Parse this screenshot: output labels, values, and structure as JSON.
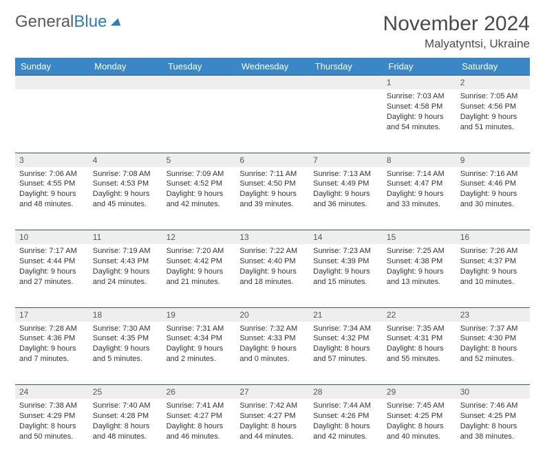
{
  "logo": {
    "text1": "General",
    "text2": "Blue"
  },
  "title": "November 2024",
  "location": "Malyatyntsi, Ukraine",
  "colors": {
    "header_bg": "#3a87c8",
    "header_text": "#ffffff",
    "daynum_bg": "#eeeeee",
    "border": "#2f5b80",
    "text": "#333333",
    "logo_gray": "#5a5a5a",
    "logo_blue": "#2b7bbf"
  },
  "weekdays": [
    "Sunday",
    "Monday",
    "Tuesday",
    "Wednesday",
    "Thursday",
    "Friday",
    "Saturday"
  ],
  "weeks": [
    [
      {},
      {},
      {},
      {},
      {},
      {
        "n": "1",
        "sr": "Sunrise: 7:03 AM",
        "ss": "Sunset: 4:58 PM",
        "d1": "Daylight: 9 hours",
        "d2": "and 54 minutes."
      },
      {
        "n": "2",
        "sr": "Sunrise: 7:05 AM",
        "ss": "Sunset: 4:56 PM",
        "d1": "Daylight: 9 hours",
        "d2": "and 51 minutes."
      }
    ],
    [
      {
        "n": "3",
        "sr": "Sunrise: 7:06 AM",
        "ss": "Sunset: 4:55 PM",
        "d1": "Daylight: 9 hours",
        "d2": "and 48 minutes."
      },
      {
        "n": "4",
        "sr": "Sunrise: 7:08 AM",
        "ss": "Sunset: 4:53 PM",
        "d1": "Daylight: 9 hours",
        "d2": "and 45 minutes."
      },
      {
        "n": "5",
        "sr": "Sunrise: 7:09 AM",
        "ss": "Sunset: 4:52 PM",
        "d1": "Daylight: 9 hours",
        "d2": "and 42 minutes."
      },
      {
        "n": "6",
        "sr": "Sunrise: 7:11 AM",
        "ss": "Sunset: 4:50 PM",
        "d1": "Daylight: 9 hours",
        "d2": "and 39 minutes."
      },
      {
        "n": "7",
        "sr": "Sunrise: 7:13 AM",
        "ss": "Sunset: 4:49 PM",
        "d1": "Daylight: 9 hours",
        "d2": "and 36 minutes."
      },
      {
        "n": "8",
        "sr": "Sunrise: 7:14 AM",
        "ss": "Sunset: 4:47 PM",
        "d1": "Daylight: 9 hours",
        "d2": "and 33 minutes."
      },
      {
        "n": "9",
        "sr": "Sunrise: 7:16 AM",
        "ss": "Sunset: 4:46 PM",
        "d1": "Daylight: 9 hours",
        "d2": "and 30 minutes."
      }
    ],
    [
      {
        "n": "10",
        "sr": "Sunrise: 7:17 AM",
        "ss": "Sunset: 4:44 PM",
        "d1": "Daylight: 9 hours",
        "d2": "and 27 minutes."
      },
      {
        "n": "11",
        "sr": "Sunrise: 7:19 AM",
        "ss": "Sunset: 4:43 PM",
        "d1": "Daylight: 9 hours",
        "d2": "and 24 minutes."
      },
      {
        "n": "12",
        "sr": "Sunrise: 7:20 AM",
        "ss": "Sunset: 4:42 PM",
        "d1": "Daylight: 9 hours",
        "d2": "and 21 minutes."
      },
      {
        "n": "13",
        "sr": "Sunrise: 7:22 AM",
        "ss": "Sunset: 4:40 PM",
        "d1": "Daylight: 9 hours",
        "d2": "and 18 minutes."
      },
      {
        "n": "14",
        "sr": "Sunrise: 7:23 AM",
        "ss": "Sunset: 4:39 PM",
        "d1": "Daylight: 9 hours",
        "d2": "and 15 minutes."
      },
      {
        "n": "15",
        "sr": "Sunrise: 7:25 AM",
        "ss": "Sunset: 4:38 PM",
        "d1": "Daylight: 9 hours",
        "d2": "and 13 minutes."
      },
      {
        "n": "16",
        "sr": "Sunrise: 7:26 AM",
        "ss": "Sunset: 4:37 PM",
        "d1": "Daylight: 9 hours",
        "d2": "and 10 minutes."
      }
    ],
    [
      {
        "n": "17",
        "sr": "Sunrise: 7:28 AM",
        "ss": "Sunset: 4:36 PM",
        "d1": "Daylight: 9 hours",
        "d2": "and 7 minutes."
      },
      {
        "n": "18",
        "sr": "Sunrise: 7:30 AM",
        "ss": "Sunset: 4:35 PM",
        "d1": "Daylight: 9 hours",
        "d2": "and 5 minutes."
      },
      {
        "n": "19",
        "sr": "Sunrise: 7:31 AM",
        "ss": "Sunset: 4:34 PM",
        "d1": "Daylight: 9 hours",
        "d2": "and 2 minutes."
      },
      {
        "n": "20",
        "sr": "Sunrise: 7:32 AM",
        "ss": "Sunset: 4:33 PM",
        "d1": "Daylight: 9 hours",
        "d2": "and 0 minutes."
      },
      {
        "n": "21",
        "sr": "Sunrise: 7:34 AM",
        "ss": "Sunset: 4:32 PM",
        "d1": "Daylight: 8 hours",
        "d2": "and 57 minutes."
      },
      {
        "n": "22",
        "sr": "Sunrise: 7:35 AM",
        "ss": "Sunset: 4:31 PM",
        "d1": "Daylight: 8 hours",
        "d2": "and 55 minutes."
      },
      {
        "n": "23",
        "sr": "Sunrise: 7:37 AM",
        "ss": "Sunset: 4:30 PM",
        "d1": "Daylight: 8 hours",
        "d2": "and 52 minutes."
      }
    ],
    [
      {
        "n": "24",
        "sr": "Sunrise: 7:38 AM",
        "ss": "Sunset: 4:29 PM",
        "d1": "Daylight: 8 hours",
        "d2": "and 50 minutes."
      },
      {
        "n": "25",
        "sr": "Sunrise: 7:40 AM",
        "ss": "Sunset: 4:28 PM",
        "d1": "Daylight: 8 hours",
        "d2": "and 48 minutes."
      },
      {
        "n": "26",
        "sr": "Sunrise: 7:41 AM",
        "ss": "Sunset: 4:27 PM",
        "d1": "Daylight: 8 hours",
        "d2": "and 46 minutes."
      },
      {
        "n": "27",
        "sr": "Sunrise: 7:42 AM",
        "ss": "Sunset: 4:27 PM",
        "d1": "Daylight: 8 hours",
        "d2": "and 44 minutes."
      },
      {
        "n": "28",
        "sr": "Sunrise: 7:44 AM",
        "ss": "Sunset: 4:26 PM",
        "d1": "Daylight: 8 hours",
        "d2": "and 42 minutes."
      },
      {
        "n": "29",
        "sr": "Sunrise: 7:45 AM",
        "ss": "Sunset: 4:25 PM",
        "d1": "Daylight: 8 hours",
        "d2": "and 40 minutes."
      },
      {
        "n": "30",
        "sr": "Sunrise: 7:46 AM",
        "ss": "Sunset: 4:25 PM",
        "d1": "Daylight: 8 hours",
        "d2": "and 38 minutes."
      }
    ]
  ]
}
